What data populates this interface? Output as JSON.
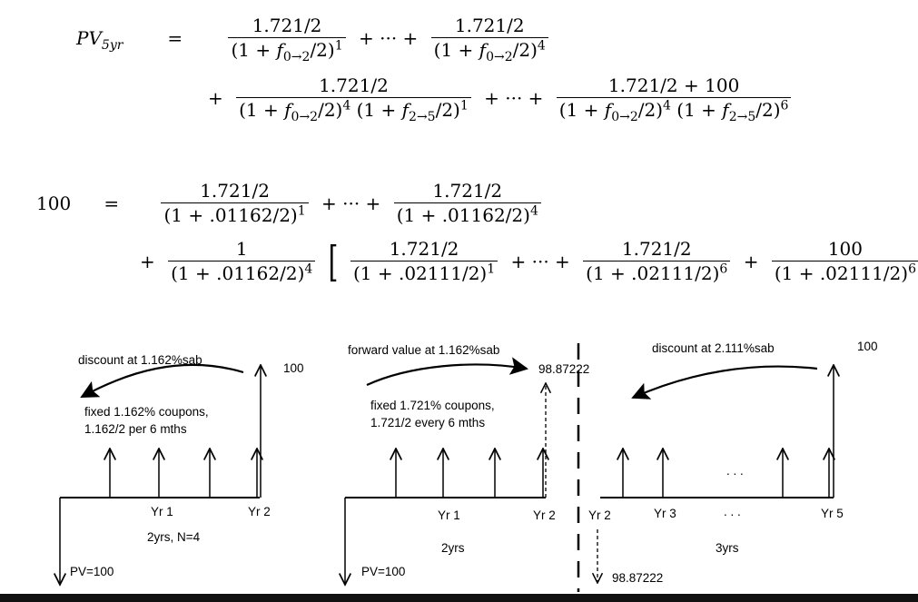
{
  "equation1": {
    "lhs": "PV",
    "lhs_sub": "5yr",
    "equals": "=",
    "coupon": "1.721/2",
    "final_payment": "1.721/2 + 100",
    "plus": "+",
    "dots": "+ ··· +",
    "one_plus": "(1 + ",
    "f02": "f",
    "f02_sub": "0→2",
    "f25": "f",
    "f25_sub": "2→5",
    "half_close": "/2)",
    "exp1": "1",
    "exp4": "4",
    "exp6": "6"
  },
  "equation2": {
    "lhs": "100",
    "equals": "=",
    "coupon": "1.721/2",
    "one": "1",
    "par": "100",
    "rate1_den": "(1 + .01162/2)",
    "rate2_den": "(1 + .02111/2)",
    "plus": "+",
    "dots": "+ ··· +",
    "exp1": "1",
    "exp4": "4",
    "exp6": "6",
    "lbracket": "[",
    "rbracket": "]"
  },
  "diagram_left": {
    "discount": "discount at 1.162%sab",
    "coupons_line1": "fixed 1.162% coupons,",
    "coupons_line2": "1.162/2 per 6 mths",
    "top_value": "100",
    "yr1": "Yr 1",
    "yr2": "Yr 2",
    "period": "2yrs, N=4",
    "pv": "PV=100"
  },
  "diagram_mid": {
    "forward": "forward value at 1.162%sab",
    "value": "98.87222",
    "coupons_line1": "fixed 1.721% coupons,",
    "coupons_line2": "1.721/2 every 6 mths",
    "yr1": "Yr 1",
    "yr2": "Yr 2",
    "period": "2yrs",
    "pv": "PV=100"
  },
  "diagram_right": {
    "discount": "discount at 2.111%sab",
    "top_value": "100",
    "yr2": "Yr 2",
    "yr3": "Yr 3",
    "dots_top": ". . .",
    "dots_axis": ". . .",
    "yr5": "Yr 5",
    "period": "3yrs",
    "value": "98.87222"
  }
}
